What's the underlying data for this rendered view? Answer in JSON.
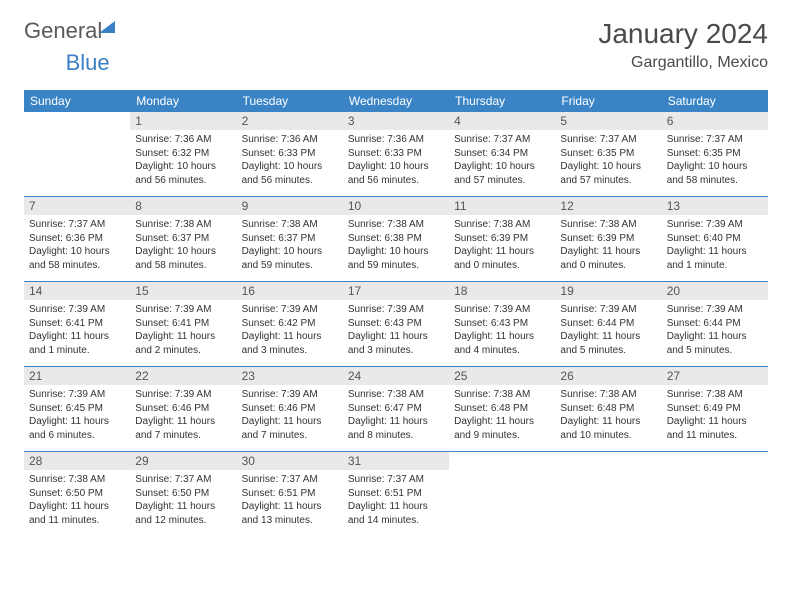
{
  "brand": {
    "part1": "General",
    "part2": "Blue"
  },
  "title": {
    "month": "January 2024",
    "location": "Gargantillo, Mexico"
  },
  "colors": {
    "header_bg": "#3a84c6",
    "header_text": "#ffffff",
    "date_bg": "#e9e9e9",
    "week_divider": "#3a84c6",
    "body_text": "#333333"
  },
  "day_names": [
    "Sunday",
    "Monday",
    "Tuesday",
    "Wednesday",
    "Thursday",
    "Friday",
    "Saturday"
  ],
  "weeks": [
    [
      null,
      {
        "date": "1",
        "sunrise": "Sunrise: 7:36 AM",
        "sunset": "Sunset: 6:32 PM",
        "daylight1": "Daylight: 10 hours",
        "daylight2": "and 56 minutes."
      },
      {
        "date": "2",
        "sunrise": "Sunrise: 7:36 AM",
        "sunset": "Sunset: 6:33 PM",
        "daylight1": "Daylight: 10 hours",
        "daylight2": "and 56 minutes."
      },
      {
        "date": "3",
        "sunrise": "Sunrise: 7:36 AM",
        "sunset": "Sunset: 6:33 PM",
        "daylight1": "Daylight: 10 hours",
        "daylight2": "and 56 minutes."
      },
      {
        "date": "4",
        "sunrise": "Sunrise: 7:37 AM",
        "sunset": "Sunset: 6:34 PM",
        "daylight1": "Daylight: 10 hours",
        "daylight2": "and 57 minutes."
      },
      {
        "date": "5",
        "sunrise": "Sunrise: 7:37 AM",
        "sunset": "Sunset: 6:35 PM",
        "daylight1": "Daylight: 10 hours",
        "daylight2": "and 57 minutes."
      },
      {
        "date": "6",
        "sunrise": "Sunrise: 7:37 AM",
        "sunset": "Sunset: 6:35 PM",
        "daylight1": "Daylight: 10 hours",
        "daylight2": "and 58 minutes."
      }
    ],
    [
      {
        "date": "7",
        "sunrise": "Sunrise: 7:37 AM",
        "sunset": "Sunset: 6:36 PM",
        "daylight1": "Daylight: 10 hours",
        "daylight2": "and 58 minutes."
      },
      {
        "date": "8",
        "sunrise": "Sunrise: 7:38 AM",
        "sunset": "Sunset: 6:37 PM",
        "daylight1": "Daylight: 10 hours",
        "daylight2": "and 58 minutes."
      },
      {
        "date": "9",
        "sunrise": "Sunrise: 7:38 AM",
        "sunset": "Sunset: 6:37 PM",
        "daylight1": "Daylight: 10 hours",
        "daylight2": "and 59 minutes."
      },
      {
        "date": "10",
        "sunrise": "Sunrise: 7:38 AM",
        "sunset": "Sunset: 6:38 PM",
        "daylight1": "Daylight: 10 hours",
        "daylight2": "and 59 minutes."
      },
      {
        "date": "11",
        "sunrise": "Sunrise: 7:38 AM",
        "sunset": "Sunset: 6:39 PM",
        "daylight1": "Daylight: 11 hours",
        "daylight2": "and 0 minutes."
      },
      {
        "date": "12",
        "sunrise": "Sunrise: 7:38 AM",
        "sunset": "Sunset: 6:39 PM",
        "daylight1": "Daylight: 11 hours",
        "daylight2": "and 0 minutes."
      },
      {
        "date": "13",
        "sunrise": "Sunrise: 7:39 AM",
        "sunset": "Sunset: 6:40 PM",
        "daylight1": "Daylight: 11 hours",
        "daylight2": "and 1 minute."
      }
    ],
    [
      {
        "date": "14",
        "sunrise": "Sunrise: 7:39 AM",
        "sunset": "Sunset: 6:41 PM",
        "daylight1": "Daylight: 11 hours",
        "daylight2": "and 1 minute."
      },
      {
        "date": "15",
        "sunrise": "Sunrise: 7:39 AM",
        "sunset": "Sunset: 6:41 PM",
        "daylight1": "Daylight: 11 hours",
        "daylight2": "and 2 minutes."
      },
      {
        "date": "16",
        "sunrise": "Sunrise: 7:39 AM",
        "sunset": "Sunset: 6:42 PM",
        "daylight1": "Daylight: 11 hours",
        "daylight2": "and 3 minutes."
      },
      {
        "date": "17",
        "sunrise": "Sunrise: 7:39 AM",
        "sunset": "Sunset: 6:43 PM",
        "daylight1": "Daylight: 11 hours",
        "daylight2": "and 3 minutes."
      },
      {
        "date": "18",
        "sunrise": "Sunrise: 7:39 AM",
        "sunset": "Sunset: 6:43 PM",
        "daylight1": "Daylight: 11 hours",
        "daylight2": "and 4 minutes."
      },
      {
        "date": "19",
        "sunrise": "Sunrise: 7:39 AM",
        "sunset": "Sunset: 6:44 PM",
        "daylight1": "Daylight: 11 hours",
        "daylight2": "and 5 minutes."
      },
      {
        "date": "20",
        "sunrise": "Sunrise: 7:39 AM",
        "sunset": "Sunset: 6:44 PM",
        "daylight1": "Daylight: 11 hours",
        "daylight2": "and 5 minutes."
      }
    ],
    [
      {
        "date": "21",
        "sunrise": "Sunrise: 7:39 AM",
        "sunset": "Sunset: 6:45 PM",
        "daylight1": "Daylight: 11 hours",
        "daylight2": "and 6 minutes."
      },
      {
        "date": "22",
        "sunrise": "Sunrise: 7:39 AM",
        "sunset": "Sunset: 6:46 PM",
        "daylight1": "Daylight: 11 hours",
        "daylight2": "and 7 minutes."
      },
      {
        "date": "23",
        "sunrise": "Sunrise: 7:39 AM",
        "sunset": "Sunset: 6:46 PM",
        "daylight1": "Daylight: 11 hours",
        "daylight2": "and 7 minutes."
      },
      {
        "date": "24",
        "sunrise": "Sunrise: 7:38 AM",
        "sunset": "Sunset: 6:47 PM",
        "daylight1": "Daylight: 11 hours",
        "daylight2": "and 8 minutes."
      },
      {
        "date": "25",
        "sunrise": "Sunrise: 7:38 AM",
        "sunset": "Sunset: 6:48 PM",
        "daylight1": "Daylight: 11 hours",
        "daylight2": "and 9 minutes."
      },
      {
        "date": "26",
        "sunrise": "Sunrise: 7:38 AM",
        "sunset": "Sunset: 6:48 PM",
        "daylight1": "Daylight: 11 hours",
        "daylight2": "and 10 minutes."
      },
      {
        "date": "27",
        "sunrise": "Sunrise: 7:38 AM",
        "sunset": "Sunset: 6:49 PM",
        "daylight1": "Daylight: 11 hours",
        "daylight2": "and 11 minutes."
      }
    ],
    [
      {
        "date": "28",
        "sunrise": "Sunrise: 7:38 AM",
        "sunset": "Sunset: 6:50 PM",
        "daylight1": "Daylight: 11 hours",
        "daylight2": "and 11 minutes."
      },
      {
        "date": "29",
        "sunrise": "Sunrise: 7:37 AM",
        "sunset": "Sunset: 6:50 PM",
        "daylight1": "Daylight: 11 hours",
        "daylight2": "and 12 minutes."
      },
      {
        "date": "30",
        "sunrise": "Sunrise: 7:37 AM",
        "sunset": "Sunset: 6:51 PM",
        "daylight1": "Daylight: 11 hours",
        "daylight2": "and 13 minutes."
      },
      {
        "date": "31",
        "sunrise": "Sunrise: 7:37 AM",
        "sunset": "Sunset: 6:51 PM",
        "daylight1": "Daylight: 11 hours",
        "daylight2": "and 14 minutes."
      },
      null,
      null,
      null
    ]
  ]
}
